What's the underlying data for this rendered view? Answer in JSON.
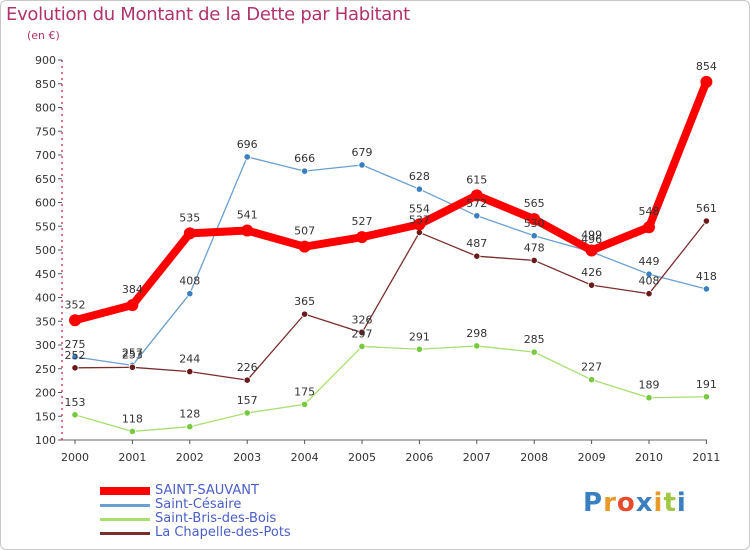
{
  "chart_data": {
    "type": "line",
    "title": "Evolution du Montant de la Dette par Habitant",
    "subtitle": "(en €)",
    "xlabel": "",
    "ylabel": "",
    "categories": [
      "2000",
      "2001",
      "2002",
      "2003",
      "2004",
      "2005",
      "2006",
      "2007",
      "2008",
      "2009",
      "2010",
      "2011"
    ],
    "ylim": [
      100,
      900
    ],
    "yticks": [
      100,
      150,
      200,
      250,
      300,
      350,
      400,
      450,
      500,
      550,
      600,
      650,
      700,
      750,
      800,
      850,
      900
    ],
    "grid": false,
    "legend_position": "bottom-left",
    "series": [
      {
        "name": "Saint-Césaire",
        "color": "#6a9fd0",
        "point_color": "#3a7fc0",
        "values": [
          275,
          257,
          408,
          696,
          666,
          679,
          628,
          572,
          530,
          496,
          449,
          418
        ]
      },
      {
        "name": "Saint-Bris-des-Bois",
        "color": "#a9df72",
        "point_color": "#78c840",
        "values": [
          153,
          118,
          128,
          157,
          175,
          297,
          291,
          298,
          285,
          227,
          189,
          191
        ]
      },
      {
        "name": "La Chapelle-des-Pots",
        "color": "#7a2d2d",
        "point_color": "#6a1a1a",
        "values": [
          252,
          253,
          244,
          226,
          365,
          326,
          537,
          487,
          478,
          426,
          408,
          561
        ]
      },
      {
        "name": "SAINT-SAUVANT",
        "color": "#ff0000",
        "point_color": "#ff0000",
        "values": [
          352,
          384,
          535,
          541,
          507,
          527,
          554,
          615,
          565,
          499,
          548,
          854
        ]
      }
    ]
  },
  "legend": [
    {
      "label": "SAINT-SAUVANT",
      "color": "#ff0000"
    },
    {
      "label": "Saint-Césaire",
      "color": "#6a9fd0"
    },
    {
      "label": "Saint-Bris-des-Bois",
      "color": "#a9df72"
    },
    {
      "label": "La Chapelle-des-Pots",
      "color": "#7a2d2d"
    }
  ],
  "logo": {
    "text": "Proxiti",
    "letters": [
      "P",
      "r",
      "o",
      "x",
      "i",
      "t",
      "i"
    ],
    "colors": [
      "#3a7fc0",
      "#e89a2a",
      "#e84a2a",
      "#3a7fc0",
      "#e89a2a",
      "#a0c840",
      "#3a7fc0"
    ]
  }
}
